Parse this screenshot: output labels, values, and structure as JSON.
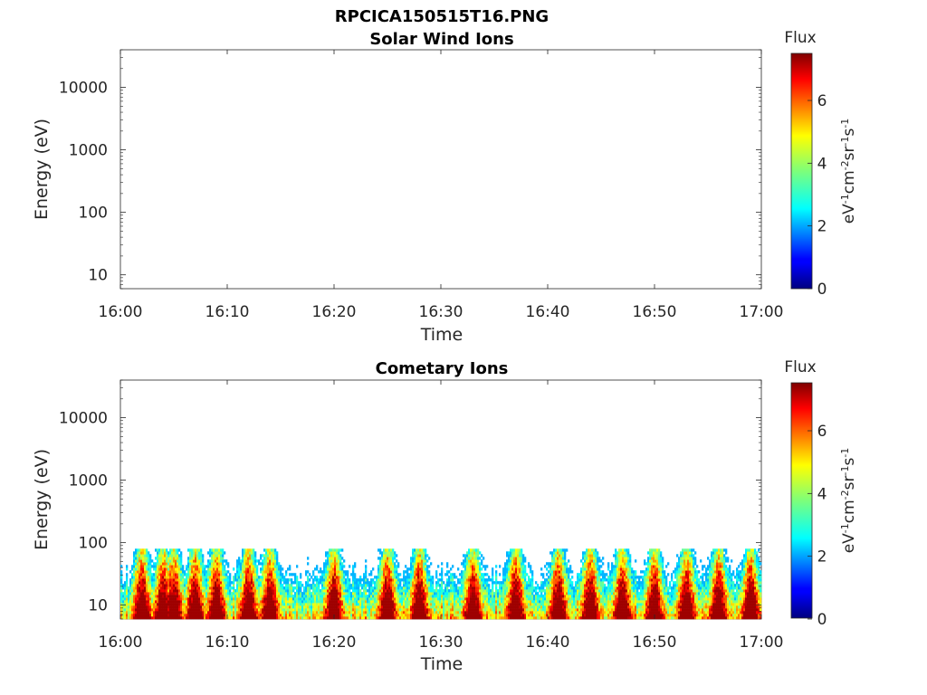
{
  "figure_title": "RPCICA150515T16.PNG",
  "chart_data": [
    {
      "type": "heatmap",
      "title": "Solar Wind Ions",
      "xlabel": "Time",
      "ylabel": "Energy (eV)",
      "x_ticks": [
        "16:00",
        "16:10",
        "16:20",
        "16:30",
        "16:40",
        "16:50",
        "17:00"
      ],
      "x_range": [
        "16:00",
        "17:00"
      ],
      "y_scale": "log",
      "y_ticks": [
        "10",
        "100",
        "1000",
        "10000"
      ],
      "y_range": [
        6,
        40000
      ],
      "colorbar": {
        "title": "Flux",
        "label": "eV-1cm-2sr-1s-1",
        "ticks": [
          "0",
          "2",
          "4",
          "6"
        ],
        "range": [
          0,
          7.5
        ],
        "colormap": "jet"
      },
      "data": []
    },
    {
      "type": "heatmap",
      "title": "Cometary Ions",
      "xlabel": "Time",
      "ylabel": "Energy (eV)",
      "x_ticks": [
        "16:00",
        "16:10",
        "16:20",
        "16:30",
        "16:40",
        "16:50",
        "17:00"
      ],
      "x_range": [
        "16:00",
        "17:00"
      ],
      "y_scale": "log",
      "y_ticks": [
        "10",
        "100",
        "1000",
        "10000"
      ],
      "y_range": [
        6,
        40000
      ],
      "colorbar": {
        "title": "Flux",
        "label": "eV-1cm-2sr-1s-1",
        "ticks": [
          "0",
          "2",
          "4",
          "6"
        ],
        "range": [
          0,
          7.5
        ],
        "colormap": "jet"
      },
      "energy_max_eV": 80,
      "peak_flux_times": [
        "16:02",
        "16:04",
        "16:05",
        "16:07",
        "16:09",
        "16:12",
        "16:14",
        "16:20",
        "16:25",
        "16:28",
        "16:33",
        "16:37",
        "16:41",
        "16:44",
        "16:47",
        "16:50",
        "16:53",
        "16:56",
        "16:59"
      ]
    }
  ]
}
